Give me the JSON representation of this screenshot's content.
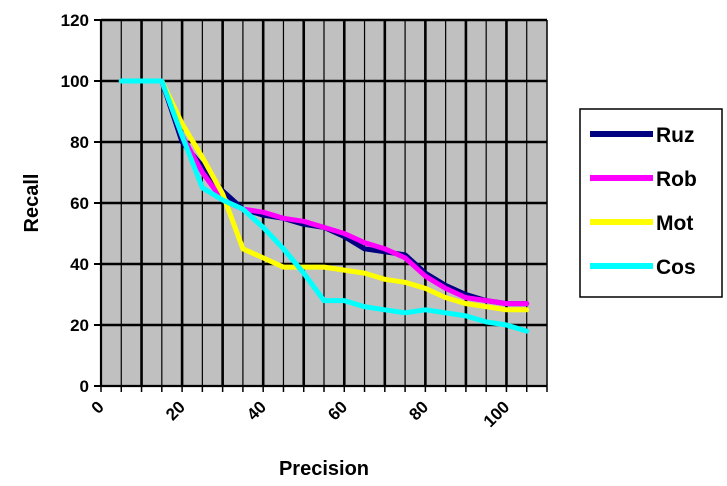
{
  "chart_data": {
    "type": "line",
    "xlabel": "Precision",
    "ylabel": "Recall",
    "xlim": [
      0,
      110
    ],
    "ylim": [
      0,
      120
    ],
    "xticks": [
      0,
      20,
      40,
      60,
      80,
      100
    ],
    "xtick_labels": [
      "0",
      "20",
      "40",
      "60",
      "80",
      "100"
    ],
    "yticks": [
      0,
      20,
      40,
      60,
      80,
      100,
      120
    ],
    "ytick_labels": [
      "0",
      "20",
      "40",
      "60",
      "80",
      "100",
      "120"
    ],
    "grid": true,
    "plot_background": "#c0c0c0",
    "legend_position": "right",
    "series": [
      {
        "name": "Ruz",
        "color": "#000080",
        "x": [
          5,
          10,
          15,
          20,
          25,
          30,
          35,
          40,
          45,
          50,
          55,
          60,
          65,
          70,
          75,
          80,
          85,
          90,
          95,
          100,
          105
        ],
        "y": [
          100,
          100,
          100,
          80,
          72,
          64,
          58,
          56,
          55,
          53,
          52,
          49,
          45,
          44,
          43,
          37,
          33,
          30,
          28,
          27,
          27
        ]
      },
      {
        "name": "Rob",
        "color": "#ff00ff",
        "x": [
          5,
          10,
          15,
          20,
          25,
          30,
          35,
          40,
          45,
          50,
          55,
          60,
          65,
          70,
          75,
          80,
          85,
          90,
          95,
          100,
          105
        ],
        "y": [
          100,
          100,
          100,
          82,
          70,
          61,
          58,
          57,
          55,
          54,
          52,
          50,
          47,
          45,
          42,
          36,
          32,
          29,
          28,
          27,
          27
        ]
      },
      {
        "name": "Mot",
        "color": "#ffff00",
        "x": [
          5,
          10,
          15,
          20,
          25,
          30,
          35,
          40,
          45,
          50,
          55,
          60,
          65,
          70,
          75,
          80,
          85,
          90,
          95,
          100,
          105
        ],
        "y": [
          100,
          100,
          100,
          86,
          75,
          63,
          45,
          42,
          39,
          39,
          39,
          38,
          37,
          35,
          34,
          32,
          29,
          27,
          26,
          25,
          25
        ]
      },
      {
        "name": "Cos",
        "color": "#00ffff",
        "x": [
          5,
          10,
          15,
          20,
          25,
          30,
          35,
          40,
          45,
          50,
          55,
          60,
          65,
          70,
          75,
          80,
          85,
          90,
          95,
          100,
          105
        ],
        "y": [
          100,
          100,
          100,
          82,
          65,
          61,
          58,
          52,
          45,
          37,
          28,
          28,
          26,
          25,
          24,
          25,
          24,
          23,
          21,
          20,
          18
        ]
      }
    ]
  }
}
